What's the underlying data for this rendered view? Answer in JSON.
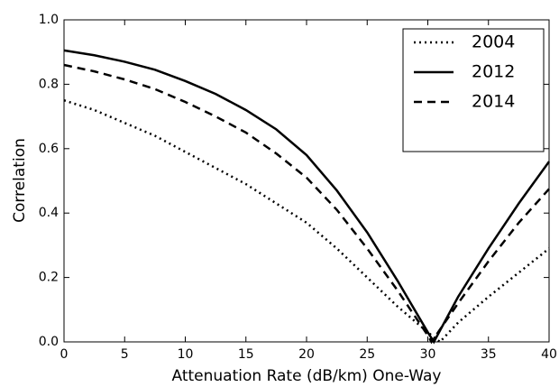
{
  "chart_data": {
    "type": "line",
    "xlabel": "Attenuation Rate (dB/km) One-Way",
    "ylabel": "Correlation",
    "xlim": [
      0,
      40
    ],
    "xticks": [
      0,
      5,
      10,
      15,
      20,
      25,
      30,
      35,
      40
    ],
    "ylim": [
      0,
      1
    ],
    "yticks": [
      {
        "value": 0,
        "label": "0.0"
      },
      0.2,
      0.4,
      0.6,
      0.8,
      {
        "value": 1,
        "label": "1.0"
      }
    ],
    "legend": "upper right",
    "series": [
      {
        "name": "2004",
        "color": "#000000",
        "style": "dotted",
        "x": [
          0,
          2.5,
          5,
          7.5,
          10,
          12.5,
          15,
          17.5,
          20,
          22.5,
          25,
          27.5,
          30,
          31,
          32.5,
          35,
          37.5,
          40
        ],
        "values": [
          0.75,
          0.72,
          0.68,
          0.64,
          0.59,
          0.54,
          0.49,
          0.43,
          0.37,
          0.29,
          0.2,
          0.11,
          0.03,
          0,
          0.06,
          0.14,
          0.215,
          0.29
        ]
      },
      {
        "name": "2012",
        "color": "#000000",
        "style": "solid",
        "x": [
          0,
          2.5,
          5,
          7.5,
          10,
          12.5,
          15,
          17.5,
          20,
          22.5,
          25,
          27.5,
          30,
          30.5,
          32.5,
          35,
          37.5,
          40
        ],
        "values": [
          0.905,
          0.89,
          0.87,
          0.845,
          0.81,
          0.77,
          0.72,
          0.66,
          0.58,
          0.47,
          0.34,
          0.19,
          0.03,
          0,
          0.14,
          0.29,
          0.43,
          0.56
        ]
      },
      {
        "name": "2014",
        "color": "#000000",
        "style": "dashed",
        "x": [
          0,
          2.5,
          5,
          7.5,
          10,
          12.5,
          15,
          17.5,
          20,
          22.5,
          25,
          27.5,
          30,
          30.3,
          32.5,
          35,
          37.5,
          40
        ],
        "values": [
          0.86,
          0.84,
          0.815,
          0.785,
          0.745,
          0.7,
          0.65,
          0.585,
          0.51,
          0.41,
          0.29,
          0.16,
          0.02,
          0,
          0.12,
          0.25,
          0.37,
          0.475
        ]
      }
    ]
  }
}
